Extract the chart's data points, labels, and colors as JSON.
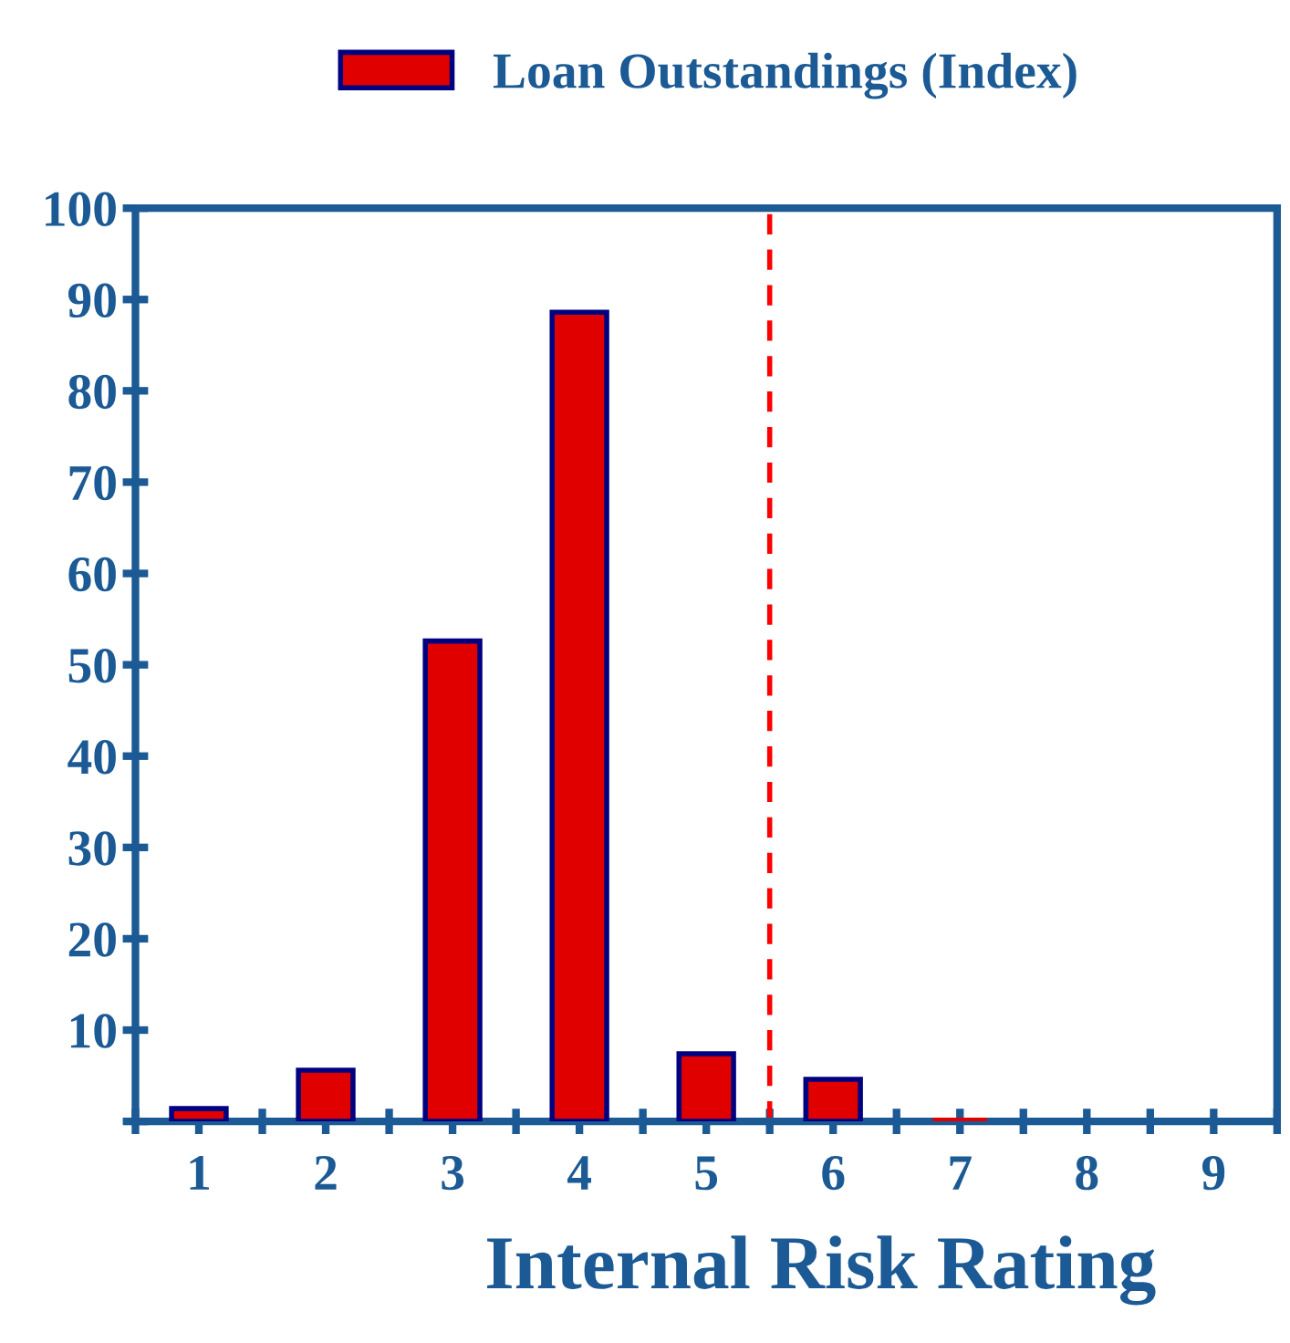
{
  "chart_data": {
    "type": "bar",
    "xlabel": "Internal Risk Rating",
    "x": [
      1,
      2,
      3,
      4,
      5,
      6,
      7,
      8,
      9
    ],
    "series": [
      {
        "name": "Loan Outstandings (Index)",
        "color": "#e00000",
        "values": [
          1.4,
          5.6,
          52.6,
          88.6,
          7.4,
          4.6,
          0.4,
          0,
          0
        ]
      }
    ],
    "xlim": [
      0.5,
      9.5
    ],
    "xticks": [
      {
        "value": 0.5,
        "label": null
      },
      1,
      {
        "value": 1.5,
        "label": null
      },
      2,
      {
        "value": 2.5,
        "label": null
      },
      3,
      {
        "value": 3.5,
        "label": null
      },
      4,
      {
        "value": 4.5,
        "label": null
      },
      5,
      {
        "value": 5.5,
        "label": null
      },
      6,
      {
        "value": 6.5,
        "label": null
      },
      7,
      {
        "value": 7.5,
        "label": null
      },
      8,
      {
        "value": 8.5,
        "label": null
      },
      9,
      {
        "value": 9.5,
        "label": null
      }
    ],
    "ylim": [
      0,
      100
    ],
    "yticks": [
      {
        "value": 0,
        "label": null
      },
      10,
      20,
      30,
      40,
      50,
      60,
      70,
      80,
      90,
      100
    ],
    "ref_lines": [
      {
        "axis": "x",
        "value": 5.5,
        "label": null,
        "color": "#ff0000",
        "line_style": "dashed"
      }
    ],
    "grid": false,
    "legend": "top"
  }
}
